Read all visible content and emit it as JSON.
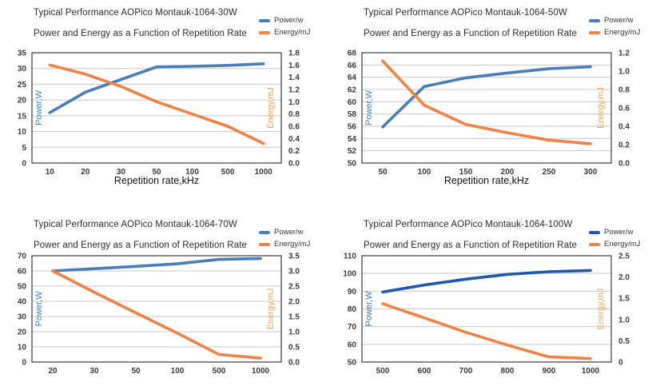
{
  "palette": {
    "grid": "#c9c9c9",
    "plot_border": "#3b3b3b",
    "tick_text": "#3a3a3a",
    "title_text": "#2b2b2b",
    "power_blue": "#4a7ebb",
    "power_blue_dark": "#2057ae",
    "energy_orange": "#ee8345"
  },
  "chart_data": [
    {
      "type": "line",
      "title": "Typical Performance AOPico Montauk-1064-30W",
      "subtitle": "Power and Energy as a Function of Repetition Rate",
      "xlabel": "Repetition rate,kHz",
      "categories": [
        "10",
        "20",
        "30",
        "50",
        "100",
        "500",
        "1000"
      ],
      "series": [
        {
          "name": "Power/w",
          "axis": "left",
          "color": "#4a7ebb",
          "values": [
            16,
            22.5,
            26.5,
            30.5,
            30.7,
            31,
            31.5
          ]
        },
        {
          "name": "Energy/mJ",
          "axis": "right",
          "color": "#ee8345",
          "values": [
            1.6,
            1.45,
            1.25,
            1.0,
            0.8,
            0.6,
            0.32
          ]
        }
      ],
      "left_axis": {
        "label": "Power,W",
        "label_color": "#3e85c7",
        "min": 0,
        "max": 35,
        "ticks": [
          "0",
          "5",
          "10",
          "15",
          "20",
          "25",
          "30",
          "35"
        ]
      },
      "right_axis": {
        "label": "Energy,mJ",
        "label_color": "#f2a454",
        "min": 0,
        "max": 1.8,
        "ticks": [
          "0.0",
          "0.2",
          "0.4",
          "0.6",
          "0.8",
          "1.0",
          "1.2",
          "1.4",
          "1.6",
          "1.8"
        ]
      },
      "grid": true,
      "legend_position": "top-right"
    },
    {
      "type": "line",
      "title": "Typical Performance AOPico Montauk-1064-50W",
      "subtitle": "Power and Energy as a Function of Repetition Rate",
      "xlabel": "Repetition rate,kHz",
      "categories": [
        "50",
        "100",
        "150",
        "200",
        "250",
        "300"
      ],
      "series": [
        {
          "name": "Power/w",
          "axis": "left",
          "color": "#4a7ebb",
          "values": [
            55.9,
            62.5,
            63.9,
            64.7,
            65.4,
            65.7
          ]
        },
        {
          "name": "Energy/mJ",
          "axis": "right",
          "color": "#ee8345",
          "values": [
            1.11,
            0.63,
            0.42,
            0.33,
            0.25,
            0.21
          ]
        }
      ],
      "left_axis": {
        "label": "Power,W",
        "label_color": "#3e85c7",
        "min": 50,
        "max": 68,
        "ticks": [
          "50",
          "52",
          "54",
          "56",
          "58",
          "60",
          "62",
          "64",
          "66",
          "68"
        ]
      },
      "right_axis": {
        "label": "Energy,mJ",
        "label_color": "#f2a454",
        "min": 0,
        "max": 1.2,
        "ticks": [
          "0.0",
          "0.2",
          "0.4",
          "0.6",
          "0.8",
          "1.0",
          "1.2"
        ]
      },
      "grid": true,
      "legend_position": "top-right"
    },
    {
      "type": "line",
      "title": "Typical Performance AOPico Montauk-1064-70W",
      "subtitle": "Power and Energy as a Function of Repetition Rate",
      "categories": [
        "20",
        "30",
        "50",
        "100",
        "500",
        "1000"
      ],
      "series": [
        {
          "name": "Power/w",
          "axis": "left",
          "color": "#4a7ebb",
          "values": [
            60,
            61.5,
            63,
            64.7,
            67.6,
            68.2
          ]
        },
        {
          "name": "Energy/mJ",
          "axis": "right",
          "color": "#ee8345",
          "values": [
            3.0,
            2.3,
            1.62,
            0.95,
            0.25,
            0.13
          ]
        }
      ],
      "left_axis": {
        "label": "Power,W",
        "label_color": "#3e85c7",
        "min": 0,
        "max": 70,
        "ticks": [
          "0",
          "10",
          "20",
          "30",
          "40",
          "50",
          "60",
          "70"
        ]
      },
      "right_axis": {
        "label": "Energy,mJ",
        "label_color": "#f2a454",
        "min": 0,
        "max": 3.5,
        "ticks": [
          "0.0",
          "0.5",
          "1.0",
          "1.5",
          "2.0",
          "2.5",
          "3.0",
          "3.5"
        ]
      },
      "grid": true,
      "legend_position": "top-right"
    },
    {
      "type": "line",
      "title": "Typical Performance AOPico Montauk-1064-100W",
      "subtitle": "Power and Energy as a Function of Repetition Rate",
      "categories": [
        "500",
        "600",
        "700",
        "800",
        "900",
        "1000"
      ],
      "series": [
        {
          "name": "Power/w",
          "axis": "left",
          "color": "#2057ae",
          "values": [
            89.5,
            93.5,
            96.8,
            99.5,
            101,
            101.7
          ]
        },
        {
          "name": "Energy/mJ",
          "axis": "right",
          "color": "#ee8345",
          "values": [
            1.37,
            1.04,
            0.7,
            0.4,
            0.12,
            0.08
          ]
        }
      ],
      "left_axis": {
        "label": "Power,W",
        "label_color": "#3a74cc",
        "min": 50,
        "max": 110,
        "ticks": [
          "50",
          "60",
          "70",
          "80",
          "90",
          "100",
          "110"
        ]
      },
      "right_axis": {
        "label": "Energy,mJ",
        "label_color": "#f2a454",
        "min": 0,
        "max": 2.5,
        "ticks": [
          "0",
          "0.5",
          "1.0",
          "1.5",
          "2.0",
          "2.5"
        ]
      },
      "grid": true,
      "legend_position": "top-right"
    }
  ]
}
